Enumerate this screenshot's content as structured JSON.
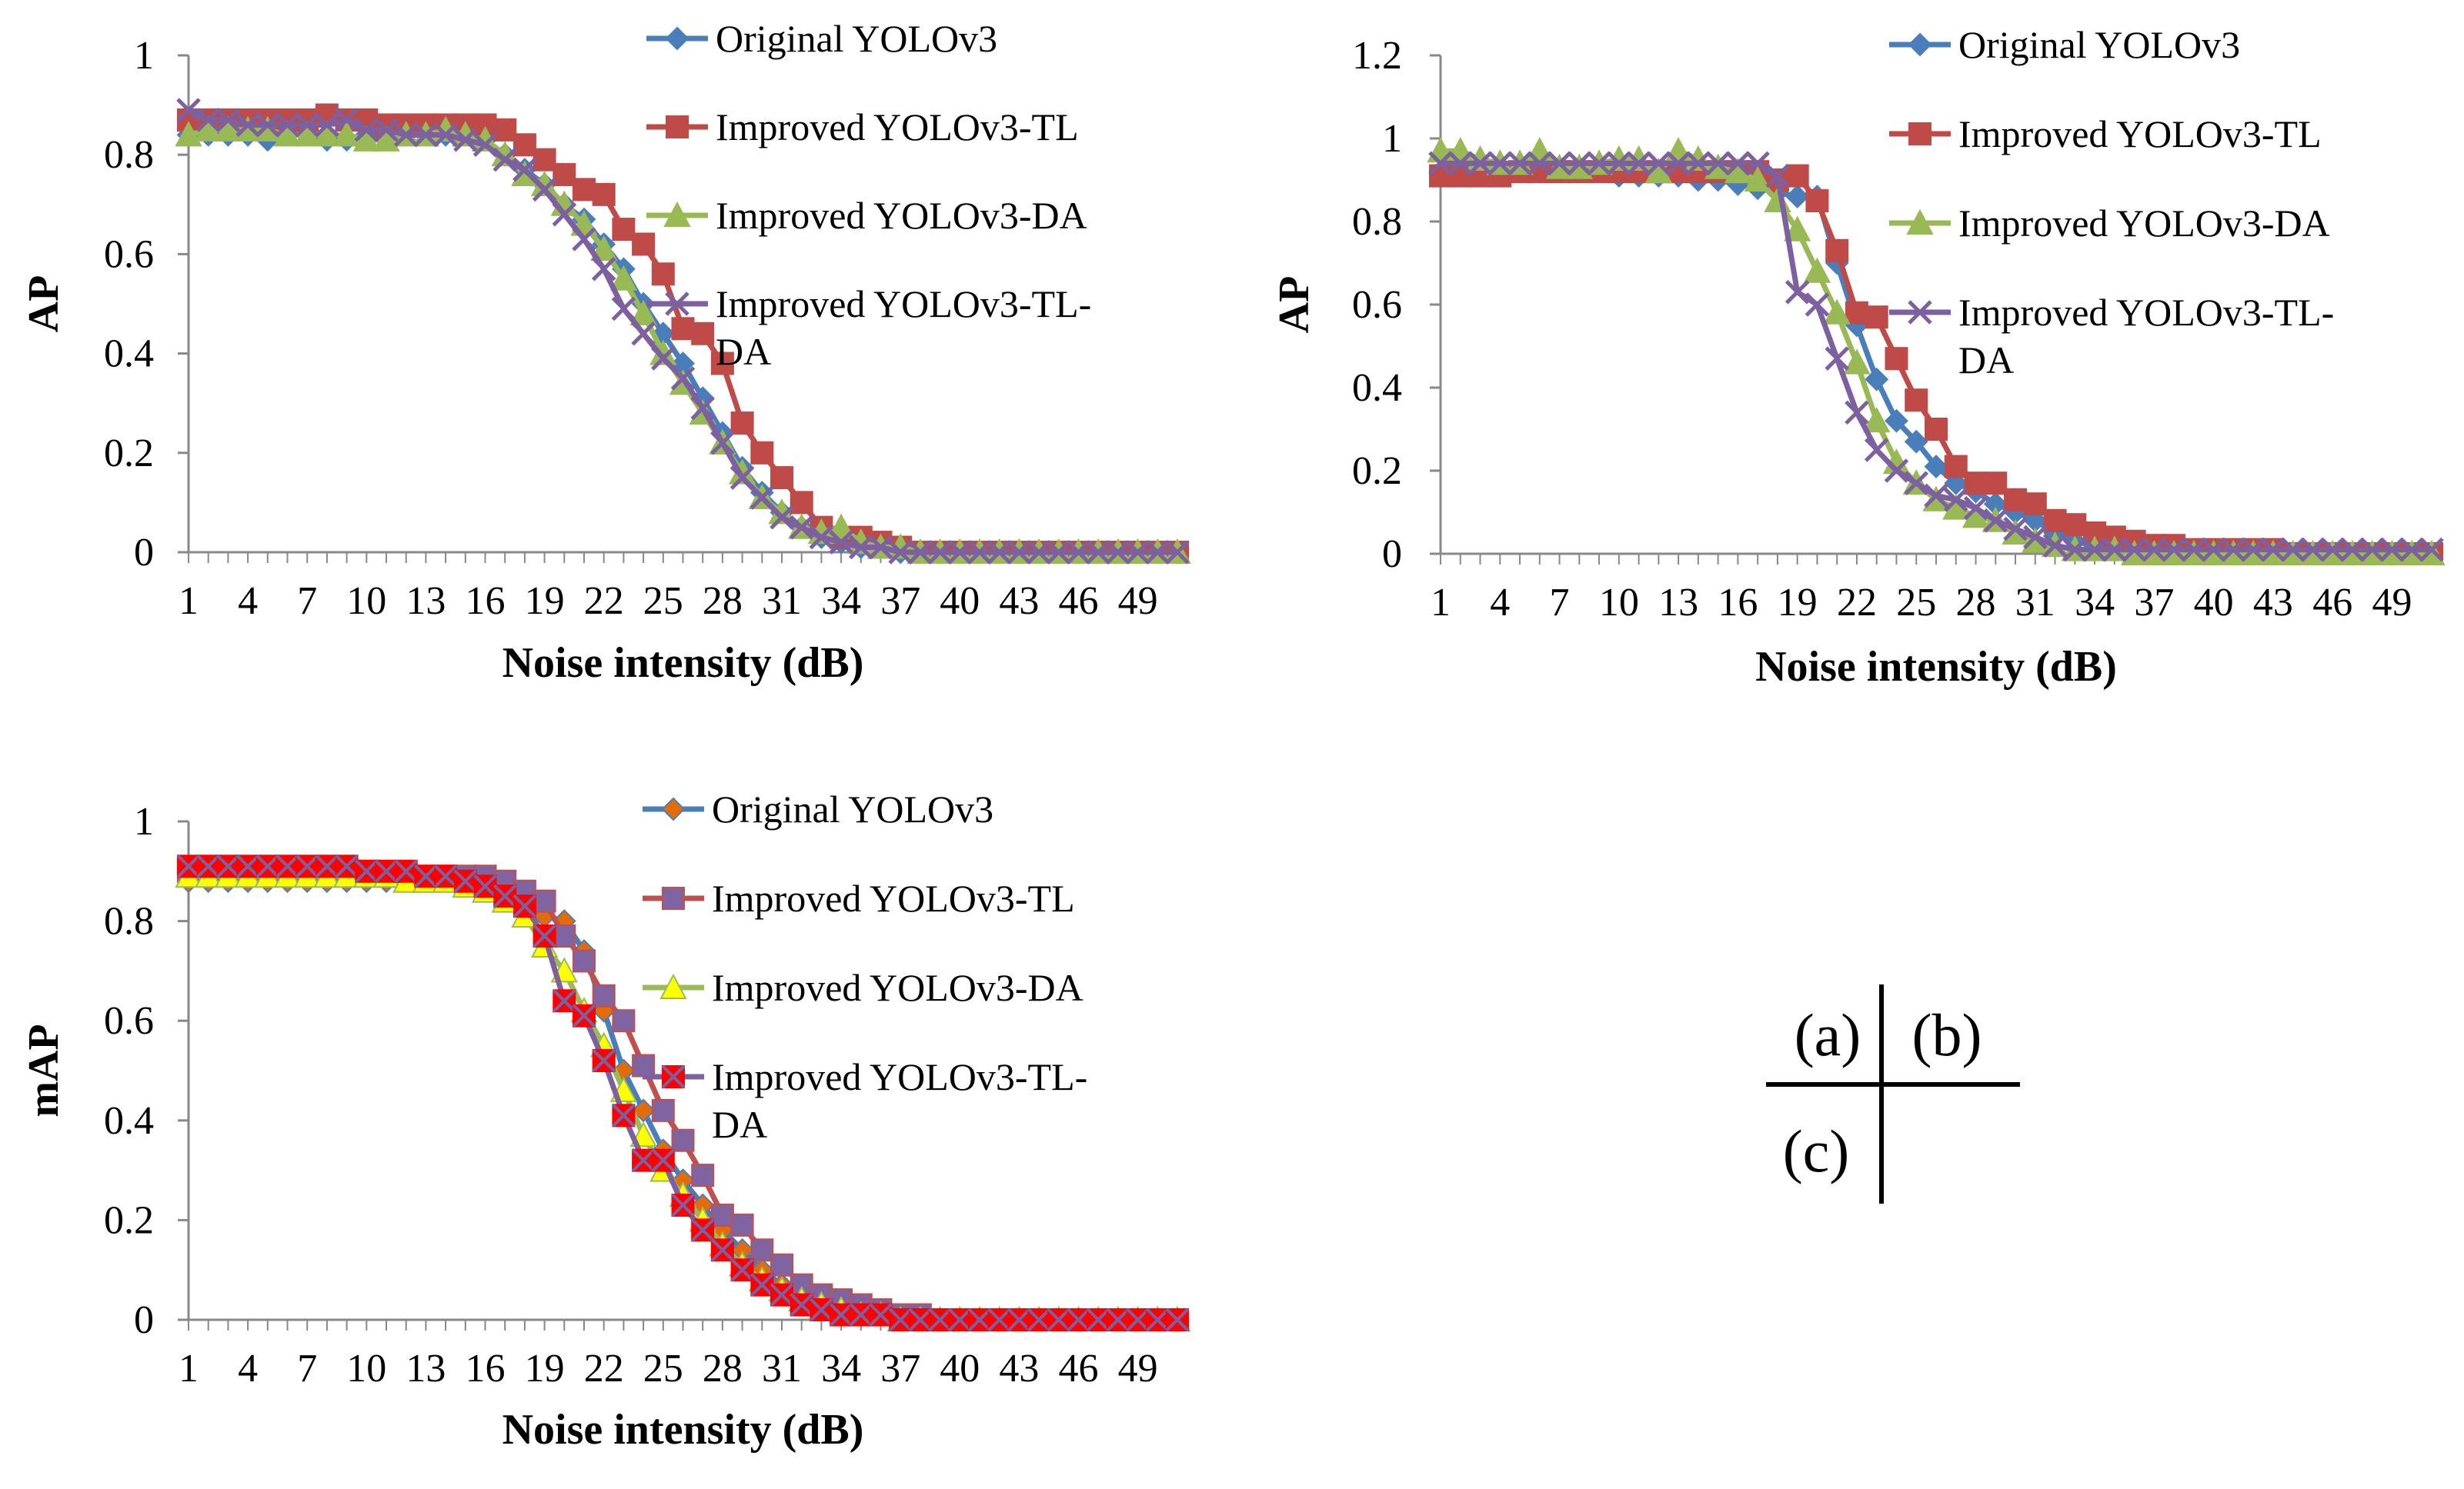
{
  "chart_data": [
    {
      "id": "a",
      "type": "line",
      "xlabel": "Noise intensity (dB)",
      "ylabel": "AP",
      "xlim": [
        1,
        51
      ],
      "ylim": [
        0,
        1
      ],
      "yticks": [
        "0",
        "0.2",
        "0.4",
        "0.6",
        "0.8",
        "1"
      ],
      "xtick_labels": [
        "1",
        "4",
        "7",
        "10",
        "13",
        "16",
        "19",
        "22",
        "25",
        "28",
        "31",
        "34",
        "37",
        "40",
        "43",
        "46",
        "49"
      ],
      "legend_position": "top-right",
      "series": [
        {
          "name": "Original YOLOv3",
          "color": "#4a7ebb",
          "marker": "diamond",
          "values": [
            0.84,
            0.84,
            0.84,
            0.84,
            0.83,
            0.84,
            0.84,
            0.83,
            0.83,
            0.84,
            0.84,
            0.84,
            0.85,
            0.84,
            0.84,
            0.83,
            0.8,
            0.77,
            0.74,
            0.7,
            0.67,
            0.62,
            0.57,
            0.5,
            0.44,
            0.38,
            0.31,
            0.24,
            0.17,
            0.12,
            0.08,
            0.05,
            0.03,
            0.02,
            0.01,
            0.01,
            0,
            0,
            0,
            0,
            0,
            0,
            0,
            0,
            0,
            0,
            0,
            0,
            0,
            0,
            0
          ]
        },
        {
          "name": "Improved YOLOv3-TL",
          "color": "#be4b48",
          "marker": "square",
          "values": [
            0.87,
            0.87,
            0.87,
            0.87,
            0.87,
            0.87,
            0.87,
            0.88,
            0.87,
            0.87,
            0.86,
            0.86,
            0.86,
            0.86,
            0.86,
            0.86,
            0.85,
            0.82,
            0.79,
            0.76,
            0.73,
            0.72,
            0.65,
            0.62,
            0.56,
            0.45,
            0.44,
            0.38,
            0.26,
            0.2,
            0.15,
            0.1,
            0.05,
            0.03,
            0.03,
            0.02,
            0.01,
            0,
            0,
            0,
            0,
            0,
            0,
            0,
            0,
            0,
            0,
            0,
            0,
            0,
            0
          ]
        },
        {
          "name": "Improved YOLOv3-DA",
          "color": "#98b954",
          "marker": "triangle",
          "values": [
            0.84,
            0.85,
            0.85,
            0.85,
            0.85,
            0.84,
            0.84,
            0.84,
            0.84,
            0.83,
            0.83,
            0.84,
            0.84,
            0.85,
            0.84,
            0.83,
            0.8,
            0.76,
            0.74,
            0.7,
            0.66,
            0.61,
            0.55,
            0.48,
            0.4,
            0.34,
            0.28,
            0.22,
            0.16,
            0.11,
            0.08,
            0.05,
            0.04,
            0.05,
            0.02,
            0.01,
            0.01,
            0,
            0,
            0,
            0,
            0,
            0,
            0,
            0,
            0,
            0,
            0,
            0,
            0,
            0
          ]
        },
        {
          "name": "Improved YOLOv3-TL-DA",
          "color": "#7d60a0",
          "marker": "x",
          "values": [
            0.89,
            0.87,
            0.87,
            0.86,
            0.86,
            0.86,
            0.86,
            0.86,
            0.87,
            0.85,
            0.85,
            0.84,
            0.84,
            0.84,
            0.83,
            0.82,
            0.79,
            0.77,
            0.73,
            0.68,
            0.63,
            0.57,
            0.49,
            0.44,
            0.39,
            0.35,
            0.29,
            0.22,
            0.15,
            0.11,
            0.07,
            0.05,
            0.03,
            0.02,
            0.01,
            0.01,
            0,
            0,
            0,
            0,
            0,
            0,
            0,
            0,
            0,
            0,
            0,
            0,
            0,
            0,
            0
          ]
        }
      ]
    },
    {
      "id": "b",
      "type": "line",
      "xlabel": "Noise intensity (dB)",
      "ylabel": "AP",
      "xlim": [
        1,
        51
      ],
      "ylim": [
        0,
        1.2
      ],
      "yticks": [
        "0",
        "0.2",
        "0.4",
        "0.6",
        "0.8",
        "1",
        "1.2"
      ],
      "xtick_labels": [
        "1",
        "4",
        "7",
        "10",
        "13",
        "16",
        "19",
        "22",
        "25",
        "28",
        "31",
        "34",
        "37",
        "40",
        "43",
        "46",
        "49"
      ],
      "legend_position": "top-right",
      "series": [
        {
          "name": "Original YOLOv3",
          "color": "#4a7ebb",
          "marker": "diamond",
          "values": [
            0.92,
            0.92,
            0.92,
            0.92,
            0.92,
            0.92,
            0.92,
            0.92,
            0.92,
            0.91,
            0.91,
            0.91,
            0.91,
            0.9,
            0.9,
            0.89,
            0.88,
            0.87,
            0.86,
            0.86,
            0.7,
            0.55,
            0.42,
            0.32,
            0.27,
            0.21,
            0.17,
            0.15,
            0.12,
            0.1,
            0.08,
            0.05,
            0.03,
            0.02,
            0.01,
            0.01,
            0,
            0,
            0,
            0,
            0,
            0,
            0,
            0,
            0,
            0,
            0,
            0,
            0,
            0,
            0
          ]
        },
        {
          "name": "Improved YOLOv3-TL",
          "color": "#be4b48",
          "marker": "square",
          "values": [
            0.91,
            0.91,
            0.91,
            0.91,
            0.92,
            0.92,
            0.92,
            0.92,
            0.92,
            0.92,
            0.92,
            0.92,
            0.92,
            0.92,
            0.92,
            0.92,
            0.92,
            0.9,
            0.91,
            0.85,
            0.73,
            0.58,
            0.57,
            0.47,
            0.37,
            0.3,
            0.21,
            0.17,
            0.17,
            0.13,
            0.12,
            0.08,
            0.07,
            0.05,
            0.04,
            0.03,
            0.02,
            0.02,
            0.01,
            0.01,
            0.01,
            0.01,
            0.01,
            0,
            0,
            0,
            0,
            0,
            0,
            0,
            0
          ]
        },
        {
          "name": "Improved YOLOv3-DA",
          "color": "#98b954",
          "marker": "triangle",
          "values": [
            0.97,
            0.97,
            0.95,
            0.94,
            0.94,
            0.97,
            0.93,
            0.93,
            0.94,
            0.95,
            0.95,
            0.92,
            0.97,
            0.95,
            0.93,
            0.92,
            0.9,
            0.85,
            0.78,
            0.68,
            0.58,
            0.46,
            0.32,
            0.22,
            0.17,
            0.13,
            0.11,
            0.09,
            0.08,
            0.05,
            0.03,
            0.02,
            0.01,
            0.01,
            0.01,
            0,
            0,
            0,
            0,
            0,
            0,
            0,
            0,
            0,
            0,
            0,
            0,
            0,
            0,
            0,
            0
          ]
        },
        {
          "name": "Improved YOLOv3-TL-DA",
          "color": "#7d60a0",
          "marker": "x",
          "values": [
            0.94,
            0.94,
            0.94,
            0.94,
            0.94,
            0.94,
            0.94,
            0.94,
            0.94,
            0.94,
            0.94,
            0.94,
            0.94,
            0.94,
            0.94,
            0.94,
            0.94,
            0.91,
            0.63,
            0.6,
            0.47,
            0.34,
            0.25,
            0.2,
            0.17,
            0.14,
            0.13,
            0.11,
            0.08,
            0.06,
            0.04,
            0.02,
            0.01,
            0.01,
            0.01,
            0.01,
            0.01,
            0.01,
            0.01,
            0.01,
            0.01,
            0.01,
            0.01,
            0.01,
            0.01,
            0.01,
            0.01,
            0.01,
            0.01,
            0.01,
            0.01
          ]
        }
      ]
    },
    {
      "id": "c",
      "type": "line",
      "xlabel": "Noise intensity (dB)",
      "ylabel": "mAP",
      "xlim": [
        1,
        51
      ],
      "ylim": [
        0,
        1
      ],
      "yticks": [
        "0",
        "0.2",
        "0.4",
        "0.6",
        "0.8",
        "1"
      ],
      "xtick_labels": [
        "1",
        "4",
        "7",
        "10",
        "13",
        "16",
        "19",
        "22",
        "25",
        "28",
        "31",
        "34",
        "37",
        "40",
        "43",
        "46",
        "49"
      ],
      "legend_position": "top-right",
      "series": [
        {
          "name": "Original YOLOv3",
          "color": "#4a7ebb",
          "marker": "diamond",
          "marker_fill": "#e36c09",
          "values": [
            0.88,
            0.88,
            0.88,
            0.88,
            0.88,
            0.88,
            0.88,
            0.88,
            0.88,
            0.88,
            0.88,
            0.88,
            0.88,
            0.88,
            0.87,
            0.86,
            0.85,
            0.83,
            0.81,
            0.8,
            0.74,
            0.62,
            0.5,
            0.42,
            0.34,
            0.28,
            0.23,
            0.18,
            0.14,
            0.1,
            0.07,
            0.05,
            0.03,
            0.02,
            0.01,
            0.01,
            0,
            0,
            0,
            0,
            0,
            0,
            0,
            0,
            0,
            0,
            0,
            0,
            0,
            0,
            0
          ]
        },
        {
          "name": "Improved YOLOv3-TL",
          "color": "#c0504d",
          "marker": "square",
          "marker_fill": "#8064a2",
          "values": [
            0.9,
            0.9,
            0.9,
            0.9,
            0.9,
            0.9,
            0.9,
            0.9,
            0.9,
            0.9,
            0.89,
            0.89,
            0.89,
            0.89,
            0.89,
            0.89,
            0.88,
            0.86,
            0.84,
            0.77,
            0.72,
            0.65,
            0.6,
            0.51,
            0.42,
            0.36,
            0.29,
            0.21,
            0.19,
            0.14,
            0.11,
            0.07,
            0.05,
            0.04,
            0.03,
            0.02,
            0.01,
            0.01,
            0,
            0,
            0,
            0,
            0,
            0,
            0,
            0,
            0,
            0,
            0,
            0,
            0
          ]
        },
        {
          "name": "Improved YOLOv3-DA",
          "color": "#9bbb59",
          "marker": "triangle",
          "marker_fill": "#ffff00",
          "values": [
            0.89,
            0.89,
            0.89,
            0.89,
            0.89,
            0.89,
            0.89,
            0.89,
            0.89,
            0.89,
            0.89,
            0.88,
            0.88,
            0.88,
            0.87,
            0.86,
            0.84,
            0.81,
            0.75,
            0.7,
            0.62,
            0.55,
            0.46,
            0.37,
            0.3,
            0.25,
            0.2,
            0.15,
            0.11,
            0.08,
            0.06,
            0.04,
            0.03,
            0.02,
            0.01,
            0.01,
            0,
            0,
            0,
            0,
            0,
            0,
            0,
            0,
            0,
            0,
            0,
            0,
            0,
            0,
            0
          ]
        },
        {
          "name": "Improved YOLOv3-TL-DA",
          "color": "#7d60a0",
          "marker": "xsquare",
          "marker_fill": "#ff0000",
          "values": [
            0.91,
            0.91,
            0.91,
            0.91,
            0.91,
            0.91,
            0.91,
            0.91,
            0.91,
            0.9,
            0.9,
            0.9,
            0.89,
            0.89,
            0.88,
            0.87,
            0.85,
            0.83,
            0.77,
            0.64,
            0.61,
            0.52,
            0.41,
            0.32,
            0.32,
            0.23,
            0.18,
            0.14,
            0.1,
            0.07,
            0.05,
            0.03,
            0.02,
            0.01,
            0.01,
            0.01,
            0,
            0,
            0,
            0,
            0,
            0,
            0,
            0,
            0,
            0,
            0,
            0,
            0,
            0,
            0
          ]
        }
      ]
    }
  ],
  "key": {
    "a": "(a)",
    "b": "(b)",
    "c": "(c)"
  }
}
